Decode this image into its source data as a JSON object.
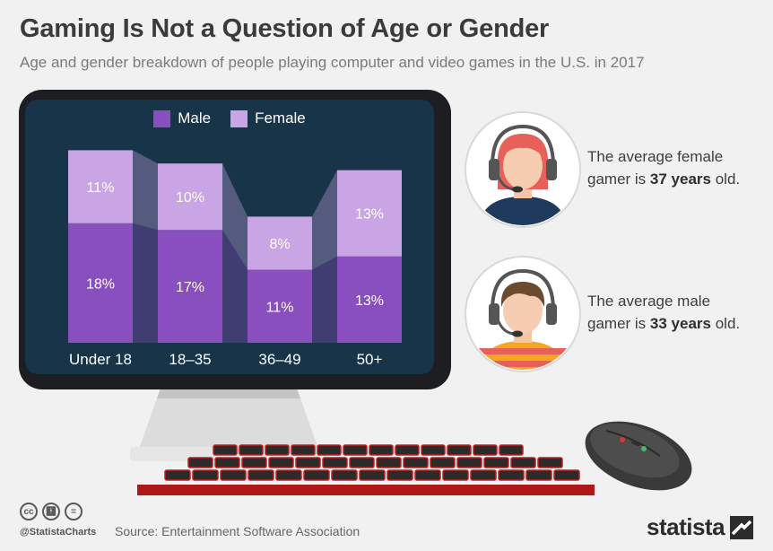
{
  "header": {
    "title": "Gaming Is Not a Question of Age or Gender",
    "subtitle": "Age and gender breakdown of people playing computer and video games in the U.S. in 2017"
  },
  "colors": {
    "male": "#8a4fbf",
    "female": "#c9a5e6",
    "screen": "#173448",
    "monitor": "#1d1e21"
  },
  "chart_data": {
    "type": "bar",
    "stacked": true,
    "categories": [
      "Under 18",
      "18–35",
      "36–49",
      "50+"
    ],
    "series": [
      {
        "name": "Male",
        "values": [
          18,
          17,
          11,
          13
        ],
        "labels": [
          "18%",
          "17%",
          "11%",
          "13%"
        ]
      },
      {
        "name": "Female",
        "values": [
          11,
          10,
          8,
          13
        ],
        "labels": [
          "11%",
          "10%",
          "8%",
          "13%"
        ]
      }
    ],
    "unit": "%",
    "legend": "top-center",
    "grid": false
  },
  "bubbles": {
    "female": {
      "line1": "The average female",
      "line2_pre": "gamer is ",
      "line2_bold": "37 years",
      "line2_post": " old.",
      "icon": "female-gamer-avatar"
    },
    "male": {
      "line1": "The average male",
      "line2_pre": "gamer is ",
      "line2_bold": "33 years",
      "line2_post": " old.",
      "icon": "male-gamer-avatar"
    }
  },
  "footer": {
    "handle": "@StatistaCharts",
    "source": "Source: Entertainment Software Association",
    "logo": "statista"
  }
}
